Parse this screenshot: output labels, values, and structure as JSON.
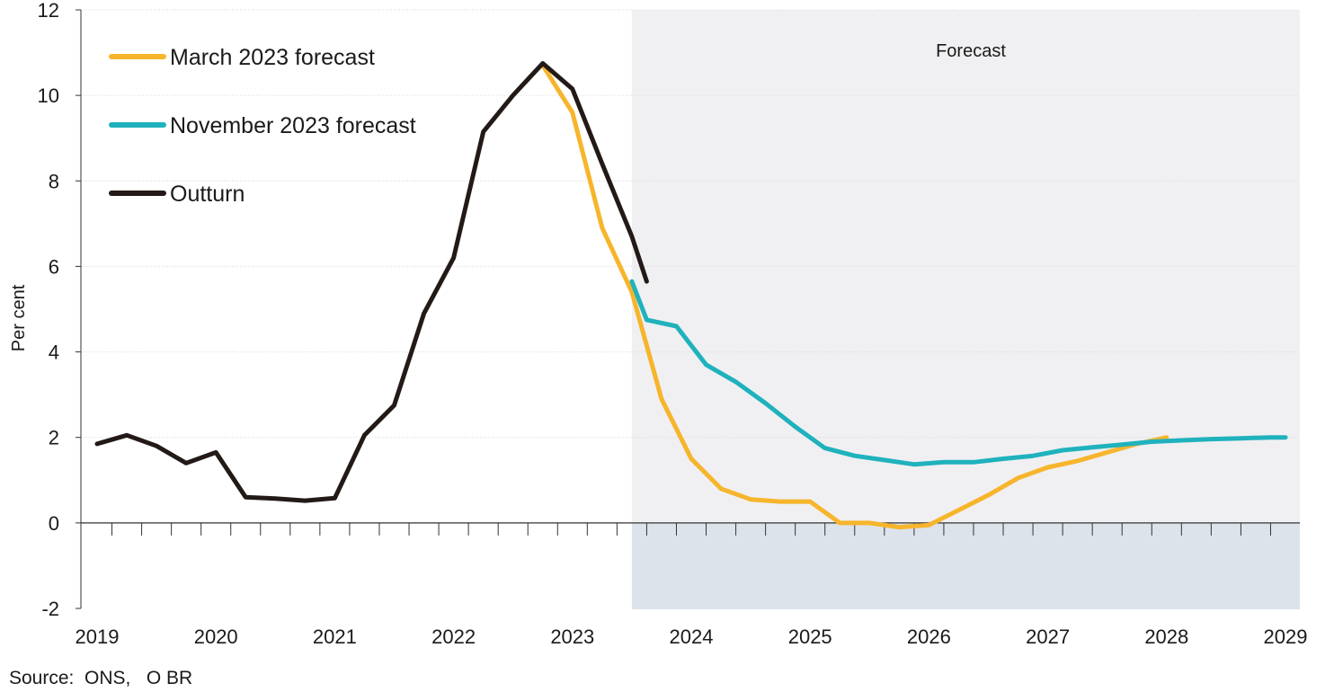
{
  "source": "Source:  ONS,   O BR",
  "chart_data": {
    "type": "line",
    "xlabel": "",
    "ylabel": "Per cent",
    "ylim": [
      -2,
      12
    ],
    "xlim": [
      2019,
      2029
    ],
    "yticks": [
      "-2",
      "0",
      "2",
      "4",
      "6",
      "8",
      "10",
      "12"
    ],
    "xticks": [
      "2019",
      "2020",
      "2021",
      "2022",
      "2023",
      "2024",
      "2025",
      "2026",
      "2027",
      "2028",
      "2029"
    ],
    "grid": "horizontal",
    "legend_position": "top-left",
    "shaded_region": {
      "label": "Forecast",
      "x_start": 2023.5,
      "x_end": 2029.15
    },
    "colors": {
      "march": "#f7b52c",
      "november": "#1fb2bd",
      "outturn": "#231a17",
      "shade_upper": "#f0f0f2",
      "shade_lower": "#dce3eb"
    },
    "series": [
      {
        "name": "March 2023 forecast",
        "color": "#f7b52c",
        "x": [
          2022.75,
          2023.0,
          2023.25,
          2023.5,
          2023.75,
          2024.0,
          2024.25,
          2024.5,
          2024.75,
          2025.0,
          2025.25,
          2025.5,
          2025.75,
          2026.0,
          2026.25,
          2026.5,
          2026.75,
          2027.0,
          2027.25,
          2027.5,
          2027.75,
          2028.0
        ],
        "y": [
          10.7,
          9.6,
          6.9,
          5.4,
          2.9,
          1.5,
          0.8,
          0.55,
          0.5,
          0.5,
          0.0,
          0.0,
          -0.1,
          -0.05,
          0.3,
          0.65,
          1.05,
          1.3,
          1.45,
          1.65,
          1.85,
          2.0
        ]
      },
      {
        "name": "November 2023 forecast",
        "color": "#1fb2bd",
        "x": [
          2023.5,
          2023.625,
          2023.875,
          2024.125,
          2024.375,
          2024.625,
          2024.875,
          2025.125,
          2025.375,
          2025.625,
          2025.875,
          2026.125,
          2026.375,
          2026.625,
          2026.875,
          2027.125,
          2027.375,
          2027.625,
          2027.875,
          2028.125,
          2028.375,
          2028.625,
          2028.875,
          2029.0
        ],
        "y": [
          5.65,
          4.75,
          4.6,
          3.7,
          3.3,
          2.8,
          2.25,
          1.75,
          1.57,
          1.47,
          1.37,
          1.42,
          1.42,
          1.5,
          1.57,
          1.7,
          1.77,
          1.83,
          1.9,
          1.93,
          1.96,
          1.98,
          2.0,
          2.0
        ]
      },
      {
        "name": "Outturn",
        "color": "#231a17",
        "x": [
          2019.0,
          2019.25,
          2019.5,
          2019.75,
          2020.0,
          2020.25,
          2020.5,
          2020.75,
          2021.0,
          2021.25,
          2021.5,
          2021.75,
          2022.0,
          2022.25,
          2022.5,
          2022.75,
          2023.0,
          2023.25,
          2023.5,
          2023.625
        ],
        "y": [
          1.85,
          2.05,
          1.8,
          1.4,
          1.65,
          0.6,
          0.57,
          0.52,
          0.58,
          2.05,
          2.75,
          4.9,
          6.2,
          9.15,
          10.0,
          10.75,
          10.15,
          8.4,
          6.7,
          5.65
        ]
      }
    ]
  }
}
